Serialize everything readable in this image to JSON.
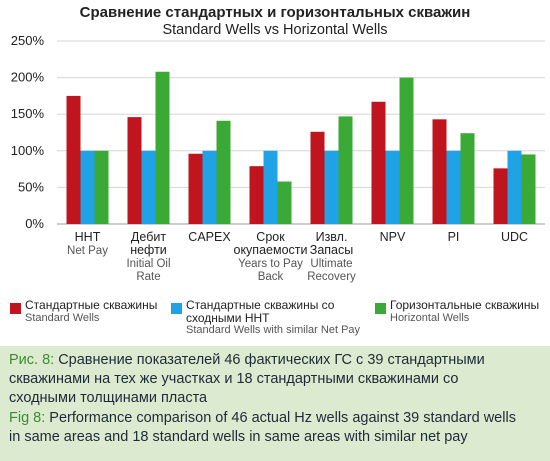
{
  "chart_data": {
    "type": "bar",
    "title": "Сравнение стандартных и горизонтальных скважин",
    "subtitle": "Standard Wells vs Horizontal Wells",
    "categories": [
      {
        "ru": [
          "ННТ"
        ],
        "en": [
          "Net Pay"
        ]
      },
      {
        "ru": [
          "Дебит",
          "нефти"
        ],
        "en": [
          "Initial Oil",
          "Rate"
        ]
      },
      {
        "ru": [
          "CAPEX"
        ],
        "en": []
      },
      {
        "ru": [
          "Срок",
          "окупаемости"
        ],
        "en": [
          "Years to Pay",
          "Back"
        ]
      },
      {
        "ru": [
          "Извл.",
          "Запасы"
        ],
        "en": [
          "Ultimate",
          "Recovery"
        ]
      },
      {
        "ru": [
          "NPV"
        ],
        "en": []
      },
      {
        "ru": [
          "PI"
        ],
        "en": []
      },
      {
        "ru": [
          "UDC"
        ],
        "en": []
      }
    ],
    "series": [
      {
        "name_ru": "Стандартные скважины",
        "name_en": "Standard Wells",
        "color": "#c0151e",
        "values": [
          175,
          146,
          96,
          79,
          126,
          167,
          143,
          76
        ]
      },
      {
        "name_ru": "Стандартные скважины со сходными ННТ",
        "name_en": "Standard Wells with similar Net Pay",
        "color": "#1fa3e6",
        "values": [
          100,
          100,
          100,
          100,
          100,
          100,
          100,
          100
        ]
      },
      {
        "name_ru": "Горизонтальные скважины",
        "name_en": "Horizontal Wells",
        "color": "#3aa935",
        "values": [
          100,
          208,
          141,
          58,
          147,
          200,
          124,
          95
        ]
      }
    ],
    "ylim": [
      0,
      250
    ],
    "yticks": [
      0,
      50,
      100,
      150,
      200,
      250
    ],
    "ytick_suffix": "%",
    "grid": "y",
    "legend_position": "bottom"
  },
  "legend": {
    "s1_ru": "Стандартные скважины",
    "s1_en": "Standard Wells",
    "s2_ru_1": "Стандартные скважины со",
    "s2_ru_2": "сходными ННТ",
    "s2_en": "Standard Wells with similar Net Pay",
    "s3_ru": "Горизонтальные скважины",
    "s3_en": "Horizontal Wells"
  },
  "caption": {
    "ru_prefix": "Рис. 8:",
    "ru_line1": " Сравнение показателей 46 фактических ГС с 39 стандартными",
    "ru_line2": "скважинами на тех же участках и 18 стандартными скважинами со",
    "ru_line3": "сходными толщинами пласта",
    "en_prefix": "Fig 8:",
    "en_line1": " Performance comparison of 46 actual Hz wells against 39 standard wells",
    "en_line2": "in same areas and 18 standard wells in same areas with similar net pay"
  }
}
